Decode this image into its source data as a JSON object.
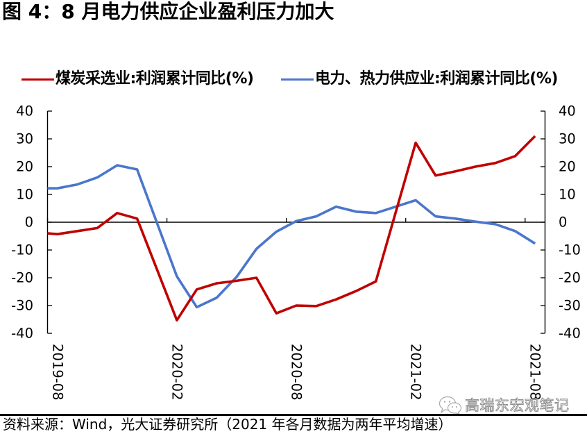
{
  "title": "图 4：8 月电力供应企业盈利压力加大",
  "source": "资料来源：Wind，光大证券研究所（2021 年各月数据为两年平均增速）",
  "watermark": {
    "icon": "wechat-icon",
    "text": "高瑞东宏观笔记"
  },
  "chart_data": {
    "type": "line",
    "title": "图 4：8 月电力供应企业盈利压力加大",
    "xlabel": "",
    "ylabel": "",
    "ylim": [
      -40,
      40
    ],
    "y_right_lim": [
      -40,
      40
    ],
    "yticks": [
      40,
      30,
      20,
      10,
      0,
      -10,
      -20,
      -30,
      -40
    ],
    "x_range_index": [
      -0.5,
      24.5
    ],
    "xtick_labels": [
      "2019-08",
      "2020-02",
      "2020-08",
      "2021-02",
      "2021-08"
    ],
    "xtick_label_index": [
      0,
      6,
      12,
      18,
      24
    ],
    "xtick_mark_index": [
      -0.5,
      5.5,
      11.5,
      17.5,
      23.5
    ],
    "grid": false,
    "legend_position": "top",
    "x": [
      "2019-08",
      "2019-09",
      "2019-10",
      "2019-11",
      "2019-12",
      "2020-02",
      "2020-03",
      "2020-04",
      "2020-05",
      "2020-06",
      "2020-07",
      "2020-08",
      "2020-09",
      "2020-10",
      "2020-11",
      "2020-12",
      "2021-02",
      "2021-03",
      "2021-04",
      "2021-05",
      "2021-06",
      "2021-07",
      "2021-08"
    ],
    "x_index": [
      0,
      1,
      2,
      3,
      4,
      6,
      7,
      8,
      9,
      10,
      11,
      12,
      13,
      14,
      15,
      16,
      18,
      19,
      20,
      21,
      22,
      23,
      24
    ],
    "series": [
      {
        "name": "煤炭采选业:利润累计同比(%)",
        "color": "#C00000",
        "clip_start_value": -4.0,
        "values": [
          -4.3,
          -3.2,
          -2.1,
          3.3,
          1.3,
          -35.3,
          -24.2,
          -22.0,
          -21.1,
          -20.0,
          -32.8,
          -30.0,
          -30.2,
          -27.8,
          -24.8,
          -21.3,
          28.6,
          16.8,
          18.3,
          20.0,
          21.3,
          23.8,
          31.0
        ]
      },
      {
        "name": "电力、热力供应业:利润累计同比(%)",
        "color": "#4A76CC",
        "clip_start_value": 12.2,
        "values": [
          12.2,
          13.6,
          16.1,
          20.5,
          19.0,
          -19.5,
          -30.6,
          -27.2,
          -19.7,
          -9.6,
          -3.4,
          0.4,
          2.1,
          5.6,
          3.8,
          3.3,
          7.9,
          2.1,
          1.3,
          0.2,
          -0.7,
          -3.2,
          -7.7
        ]
      }
    ]
  }
}
